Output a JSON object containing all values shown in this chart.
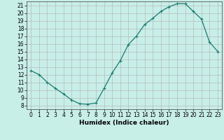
{
  "x": [
    0,
    1,
    2,
    3,
    4,
    5,
    6,
    7,
    8,
    9,
    10,
    11,
    12,
    13,
    14,
    15,
    16,
    17,
    18,
    19,
    20,
    21,
    22,
    23
  ],
  "y": [
    12.5,
    12.0,
    11.0,
    10.2,
    9.5,
    8.7,
    8.2,
    8.15,
    8.3,
    10.2,
    12.2,
    13.8,
    15.9,
    17.0,
    18.5,
    19.3,
    20.2,
    20.8,
    21.2,
    21.2,
    20.2,
    19.2,
    16.2,
    15.0
  ],
  "line_color": "#1a7a6e",
  "marker": "+",
  "marker_size": 3,
  "marker_lw": 0.8,
  "line_width": 0.9,
  "bg_color": "#c8eee8",
  "grid_color": "#b0b0b0",
  "xlabel": "Humidex (Indice chaleur)",
  "ylim": [
    7.5,
    21.5
  ],
  "xlim": [
    -0.5,
    23.5
  ],
  "yticks": [
    8,
    9,
    10,
    11,
    12,
    13,
    14,
    15,
    16,
    17,
    18,
    19,
    20,
    21
  ],
  "xticks": [
    0,
    1,
    2,
    3,
    4,
    5,
    6,
    7,
    8,
    9,
    10,
    11,
    12,
    13,
    14,
    15,
    16,
    17,
    18,
    19,
    20,
    21,
    22,
    23
  ],
  "label_fontsize": 6.5,
  "tick_fontsize": 5.5
}
